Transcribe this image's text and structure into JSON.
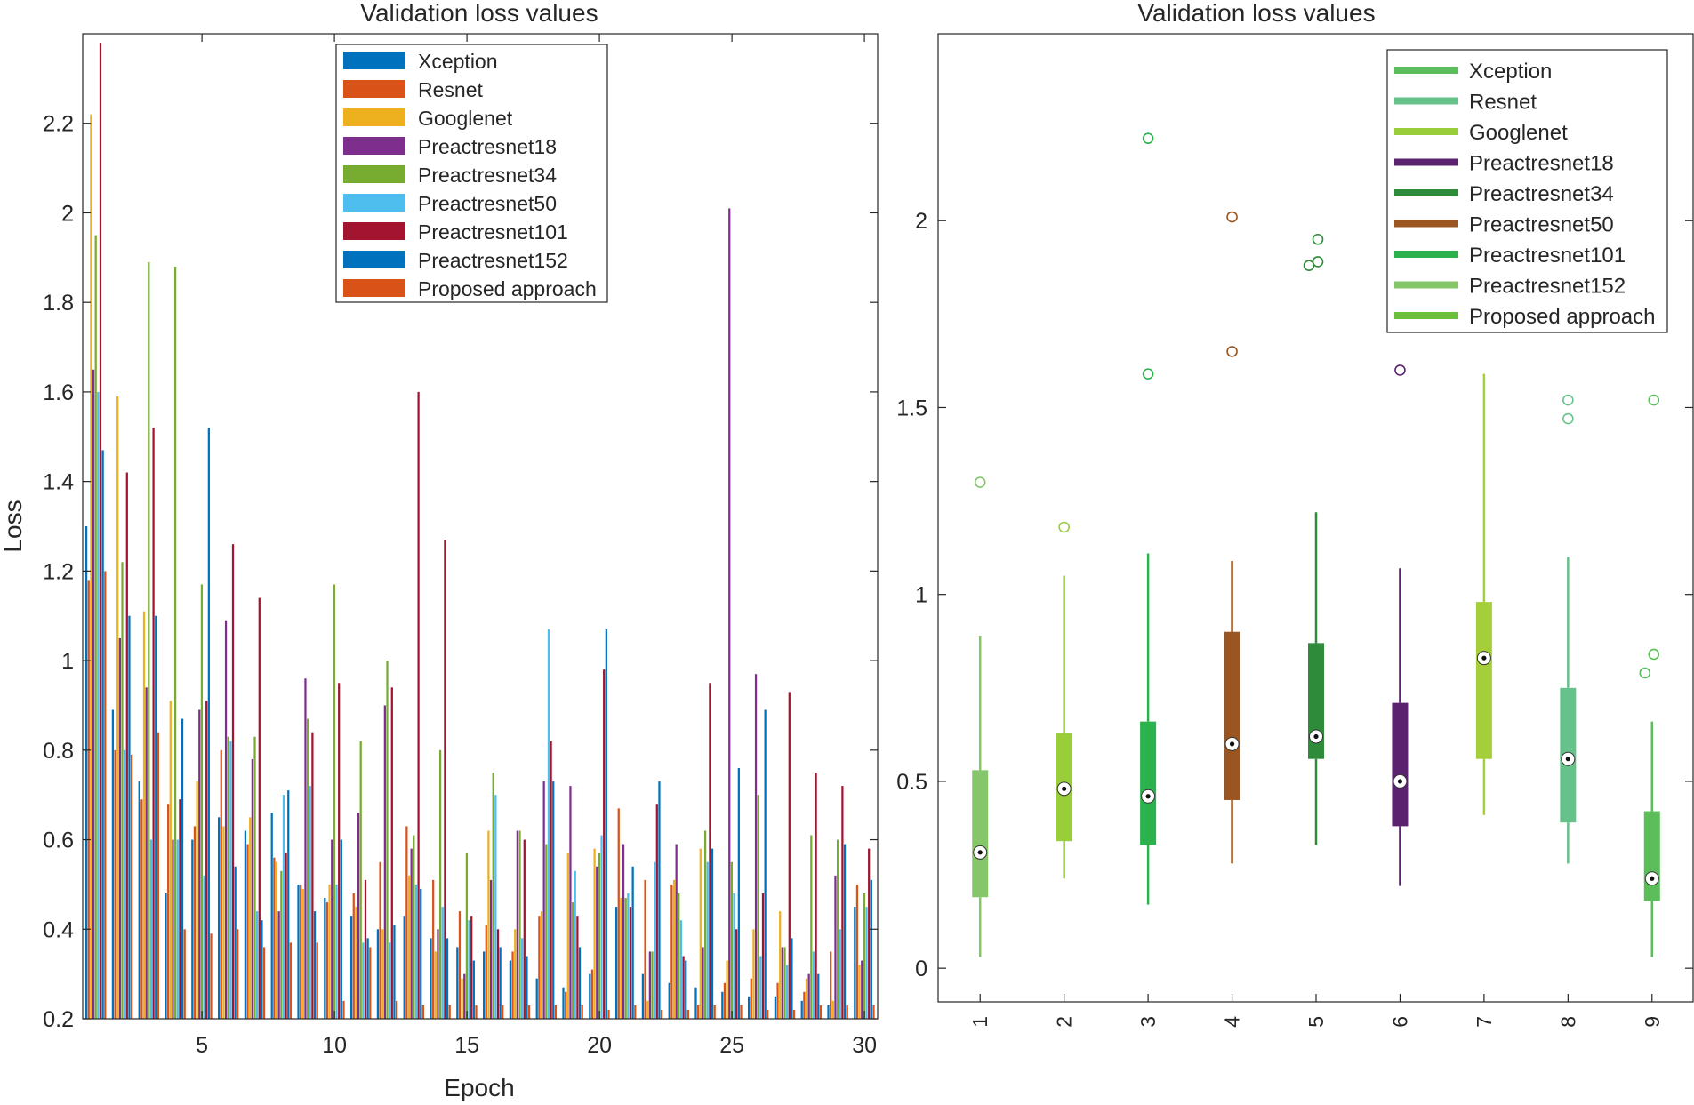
{
  "chart_data": [
    {
      "type": "bar",
      "title": "Validation loss values",
      "xlabel": "Epoch",
      "ylabel": "Loss",
      "xlim": [
        0.5,
        30.5
      ],
      "ylim": [
        0.2,
        2.4
      ],
      "xticks": [
        5,
        10,
        15,
        20,
        25,
        30
      ],
      "yticks": [
        0.2,
        0.4,
        0.6,
        0.8,
        1,
        1.2,
        1.4,
        1.6,
        1.8,
        2,
        2.2
      ],
      "legend_position": "top-right",
      "categories": [
        1,
        2,
        3,
        4,
        5,
        6,
        7,
        8,
        9,
        10,
        11,
        12,
        13,
        14,
        15,
        16,
        17,
        18,
        19,
        20,
        21,
        22,
        23,
        24,
        25,
        26,
        27,
        28,
        29,
        30
      ],
      "series": [
        {
          "name": "Xception",
          "color": "#0072BD",
          "values": [
            1.3,
            0.89,
            0.73,
            0.48,
            0.6,
            0.65,
            0.62,
            0.66,
            0.5,
            0.47,
            0.43,
            0.4,
            0.43,
            0.38,
            0.36,
            0.35,
            0.33,
            0.29,
            0.27,
            0.3,
            0.45,
            0.3,
            0.28,
            0.27,
            0.26,
            0.25,
            0.25,
            0.24,
            0.23,
            0.45
          ]
        },
        {
          "name": "Resnet",
          "color": "#D95319",
          "values": [
            1.18,
            0.8,
            0.69,
            0.68,
            0.63,
            0.8,
            0.59,
            0.56,
            0.5,
            0.46,
            0.48,
            0.55,
            0.63,
            0.51,
            0.44,
            0.41,
            0.35,
            0.43,
            0.26,
            0.31,
            0.67,
            0.51,
            0.5,
            0.23,
            0.28,
            0.29,
            0.28,
            0.26,
            0.35,
            0.5
          ]
        },
        {
          "name": "Googlenet",
          "color": "#EDB120",
          "values": [
            2.22,
            1.59,
            1.11,
            0.91,
            0.73,
            0.63,
            0.65,
            0.55,
            0.49,
            0.5,
            0.45,
            0.4,
            0.52,
            0.35,
            0.29,
            0.62,
            0.4,
            0.44,
            0.57,
            0.58,
            0.47,
            0.24,
            0.51,
            0.58,
            0.33,
            0.4,
            0.44,
            0.29,
            0.24,
            0.32
          ]
        },
        {
          "name": "Preactresnet18",
          "color": "#7E2F8E",
          "values": [
            1.65,
            1.05,
            0.94,
            0.6,
            0.89,
            1.09,
            0.78,
            0.44,
            0.96,
            0.6,
            0.66,
            0.9,
            0.58,
            0.4,
            0.3,
            0.51,
            0.62,
            0.73,
            0.72,
            0.54,
            0.59,
            0.35,
            0.59,
            0.36,
            2.01,
            0.97,
            0.36,
            0.3,
            0.52,
            0.33
          ]
        },
        {
          "name": "Preactresnet34",
          "color": "#77AC30",
          "values": [
            1.95,
            1.22,
            1.89,
            1.88,
            1.17,
            0.83,
            0.83,
            0.53,
            0.87,
            1.17,
            0.82,
            1.0,
            0.61,
            0.8,
            0.57,
            0.75,
            0.62,
            0.59,
            0.46,
            0.57,
            0.47,
            0.35,
            0.48,
            0.62,
            0.55,
            0.7,
            0.36,
            0.61,
            0.6,
            0.48
          ]
        },
        {
          "name": "Preactresnet50",
          "color": "#4DBEEE",
          "values": [
            1.6,
            0.8,
            0.6,
            0.6,
            0.52,
            0.82,
            0.44,
            0.7,
            0.72,
            0.5,
            0.37,
            0.37,
            0.5,
            0.45,
            0.42,
            0.7,
            0.38,
            1.07,
            0.53,
            0.61,
            0.48,
            0.55,
            0.42,
            0.55,
            0.48,
            0.34,
            0.32,
            0.35,
            0.4,
            0.45
          ]
        },
        {
          "name": "Preactresnet101",
          "color": "#A2142F",
          "values": [
            2.38,
            1.42,
            1.52,
            0.69,
            0.91,
            1.26,
            1.14,
            0.57,
            0.84,
            0.95,
            0.51,
            0.94,
            1.6,
            1.27,
            0.43,
            0.4,
            0.6,
            0.82,
            0.43,
            0.98,
            0.45,
            0.68,
            0.34,
            0.95,
            0.4,
            0.48,
            0.93,
            0.75,
            0.72,
            0.58
          ]
        },
        {
          "name": "Preactresnet152",
          "color": "#0072BD",
          "values": [
            1.47,
            1.1,
            1.1,
            0.87,
            1.52,
            0.54,
            0.42,
            0.71,
            0.44,
            0.6,
            0.38,
            0.41,
            0.49,
            0.38,
            0.33,
            0.36,
            0.34,
            0.73,
            0.36,
            1.07,
            0.54,
            0.73,
            0.33,
            0.58,
            0.76,
            0.89,
            0.38,
            0.3,
            0.59,
            0.51
          ]
        },
        {
          "name": "Proposed approach",
          "color": "#D95319",
          "values": [
            1.2,
            0.79,
            0.84,
            0.4,
            0.39,
            0.4,
            0.36,
            0.37,
            0.37,
            0.24,
            0.36,
            0.24,
            0.23,
            0.23,
            0.23,
            0.23,
            0.23,
            0.23,
            0.23,
            0.22,
            0.23,
            0.22,
            0.22,
            0.23,
            0.23,
            0.22,
            0.22,
            0.23,
            0.23,
            0.23
          ]
        }
      ]
    },
    {
      "type": "box",
      "title": "Validation loss values",
      "xlim": [
        0.5,
        9.5
      ],
      "ylim": [
        -0.09,
        2.5
      ],
      "xticks": [
        1,
        2,
        3,
        4,
        5,
        6,
        7,
        8,
        9
      ],
      "yticks": [
        0,
        0.5,
        1,
        1.5,
        2
      ],
      "legend_position": "top-right",
      "boxes": [
        {
          "name": "Xception",
          "color": "#5BBE5A",
          "q1": 0.19,
          "median": 0.31,
          "q3": 0.53,
          "whisker_low": 0.03,
          "whisker_high": 0.89,
          "outliers": [
            1.3
          ]
        },
        {
          "name": "Resnet",
          "color": "#66C28A",
          "q1": 0.34,
          "median": 0.48,
          "q3": 0.63,
          "whisker_low": 0.24,
          "whisker_high": 1.05,
          "outliers": [
            1.18
          ]
        },
        {
          "name": "Googlenet",
          "color": "#9ACD3A",
          "q1": 0.33,
          "median": 0.46,
          "q3": 0.66,
          "whisker_low": 0.17,
          "whisker_high": 1.11,
          "outliers": [
            1.59,
            2.22
          ]
        },
        {
          "name": "Preactresnet18",
          "color": "#5B2270",
          "q1": 0.45,
          "median": 0.6,
          "q3": 0.9,
          "whisker_low": 0.28,
          "whisker_high": 1.09,
          "outliers": [
            1.65,
            2.01
          ]
        },
        {
          "name": "Preactresnet34",
          "color": "#2E8B3A",
          "q1": 0.56,
          "median": 0.62,
          "q3": 0.87,
          "whisker_low": 0.33,
          "whisker_high": 1.22,
          "outliers": [
            1.88,
            1.89,
            1.95
          ]
        },
        {
          "name": "Preactresnet50",
          "color": "#9A5520",
          "q1": 0.38,
          "median": 0.5,
          "q3": 0.71,
          "whisker_low": 0.22,
          "whisker_high": 1.07,
          "outliers": [
            1.6
          ]
        },
        {
          "name": "Preactresnet101",
          "color": "#2BB24C",
          "q1": 0.56,
          "median": 0.83,
          "q3": 0.98,
          "whisker_low": 0.41,
          "whisker_high": 1.59,
          "outliers": []
        },
        {
          "name": "Preactresnet152",
          "color": "#86C66B",
          "q1": 0.39,
          "median": 0.56,
          "q3": 0.75,
          "whisker_low": 0.28,
          "whisker_high": 1.1,
          "outliers": [
            1.47,
            1.52
          ]
        },
        {
          "name": "Proposed approach",
          "color": "#6CBF3C",
          "q1": 0.18,
          "median": 0.24,
          "q3": 0.42,
          "whisker_low": 0.03,
          "whisker_high": 0.66,
          "outliers": [
            0.79,
            0.84,
            1.52
          ]
        }
      ],
      "box_colors": [
        "#86C66B",
        "#9ACD3A",
        "#2BB24C",
        "#9A5520",
        "#2E8B3A",
        "#5B2270",
        "#A4CF3A",
        "#66C28A",
        "#5BBE5A"
      ]
    }
  ]
}
